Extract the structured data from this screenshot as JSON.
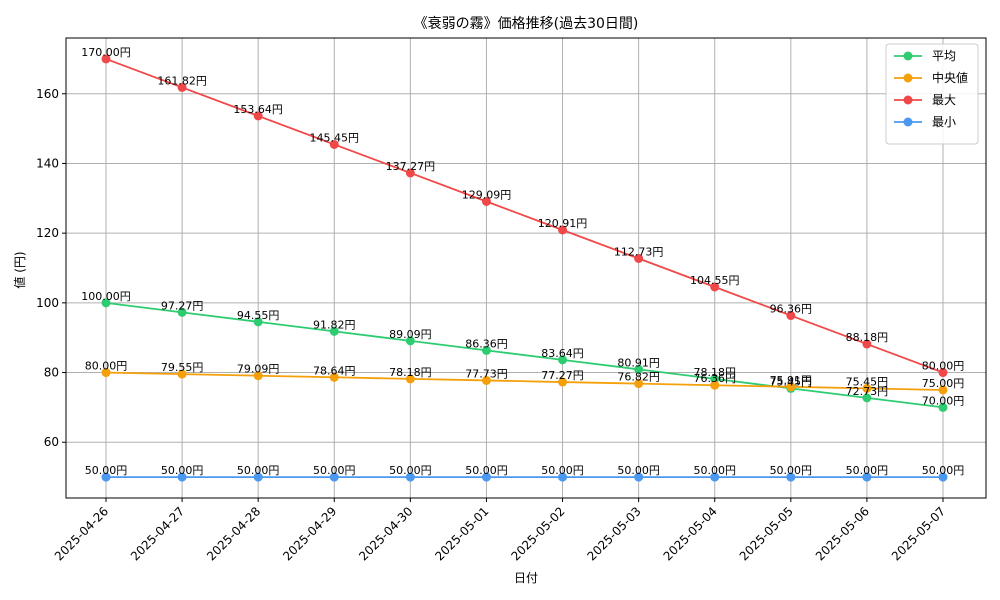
{
  "chart_data": {
    "type": "line",
    "title": "《衰弱の霧》価格推移(過去30日間)",
    "xlabel": "日付",
    "ylabel": "値 (円)",
    "ylim": [
      44,
      176
    ],
    "yticks": [
      60,
      80,
      100,
      120,
      140,
      160
    ],
    "grid": true,
    "legend_position": "top-right",
    "categories": [
      "2025-04-26",
      "2025-04-27",
      "2025-04-28",
      "2025-04-29",
      "2025-04-30",
      "2025-05-01",
      "2025-05-02",
      "2025-05-03",
      "2025-05-04",
      "2025-05-05",
      "2025-05-06",
      "2025-05-07"
    ],
    "series": [
      {
        "name": "平均",
        "color": "#2ecc71",
        "values": [
          100.0,
          97.27,
          94.55,
          91.82,
          89.09,
          86.36,
          83.64,
          80.91,
          78.18,
          75.45,
          72.73,
          70.0
        ],
        "labels": [
          "100.00円",
          "97.27円",
          "94.55円",
          "91.82円",
          "89.09円",
          "86.36円",
          "83.64円",
          "80.91円",
          "78.18円",
          "75.45円",
          "72.73円",
          "70.00円"
        ]
      },
      {
        "name": "中央値",
        "color": "#f5a00a",
        "values": [
          80.0,
          79.55,
          79.09,
          78.64,
          78.18,
          77.73,
          77.27,
          76.82,
          76.36,
          75.91,
          75.45,
          75.0
        ],
        "labels": [
          "80.00円",
          "79.55円",
          "79.09円",
          "78.64円",
          "78.18円",
          "77.73円",
          "77.27円",
          "76.82円",
          "76.36円",
          "75.91円",
          "75.45円",
          "75.00円"
        ]
      },
      {
        "name": "最大",
        "color": "#f04848",
        "values": [
          170.0,
          161.82,
          153.64,
          145.45,
          137.27,
          129.09,
          120.91,
          112.73,
          104.55,
          96.36,
          88.18,
          80.0
        ],
        "labels": [
          "170.00円",
          "161.82円",
          "153.64円",
          "145.45円",
          "137.27円",
          "129.09円",
          "120.91円",
          "112.73円",
          "104.55円",
          "96.36円",
          "88.18円",
          "80.00円"
        ]
      },
      {
        "name": "最小",
        "color": "#4a98f0",
        "values": [
          50.0,
          50.0,
          50.0,
          50.0,
          50.0,
          50.0,
          50.0,
          50.0,
          50.0,
          50.0,
          50.0,
          50.0
        ],
        "labels": [
          "50.00円",
          "50.00円",
          "50.00円",
          "50.00円",
          "50.00円",
          "50.00円",
          "50.00円",
          "50.00円",
          "50.00円",
          "50.00円",
          "50.00円",
          "50.00円"
        ]
      }
    ]
  }
}
